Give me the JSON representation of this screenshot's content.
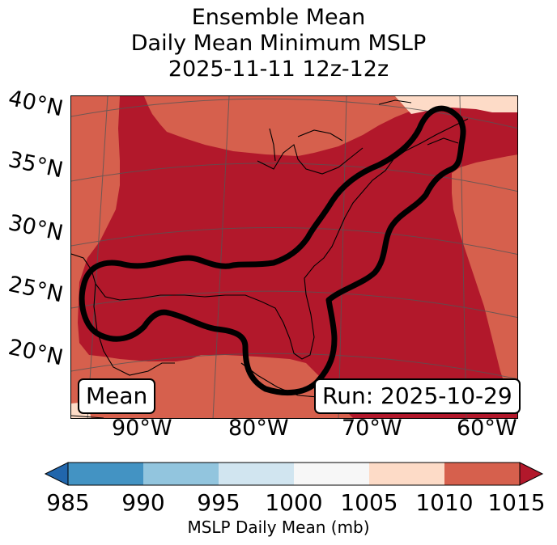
{
  "title": {
    "line1": "Ensemble Mean",
    "line2": "Daily Mean Minimum MSLP",
    "line3": "2025-11-11 12z-12z"
  },
  "map": {
    "lat_labels": [
      "40°N",
      "35°N",
      "30°N",
      "25°N",
      "20°N"
    ],
    "lon_labels": [
      "90°W",
      "80°W",
      "70°W",
      "60°W"
    ],
    "left_badge": "Mean",
    "right_badge": "Run: 2025-10-29",
    "colors": {
      "ocean_land_1010_1015": "#d6604d",
      "low_1005_1010": "#b2182b",
      "high_1000_1005": "#fddbc7",
      "contour": "#000000",
      "coast": "#000000",
      "grid": "#555555"
    }
  },
  "colorbar": {
    "label": "MSLP Daily Mean (mb)",
    "ticks": [
      "985",
      "990",
      "995",
      "1000",
      "1005",
      "1010",
      "1015"
    ],
    "bins": [
      {
        "range": "985-990",
        "color": "#4393c3"
      },
      {
        "range": "990-995",
        "color": "#92c5de"
      },
      {
        "range": "995-1000",
        "color": "#d1e5f0"
      },
      {
        "range": "1000-1005",
        "color": "#f7f7f7"
      },
      {
        "range": "1005-1010",
        "color": "#fddbc7"
      },
      {
        "range": "1010-1015",
        "color": "#d6604d"
      }
    ],
    "under_color": "#2166ac",
    "over_color": "#b2182b"
  }
}
